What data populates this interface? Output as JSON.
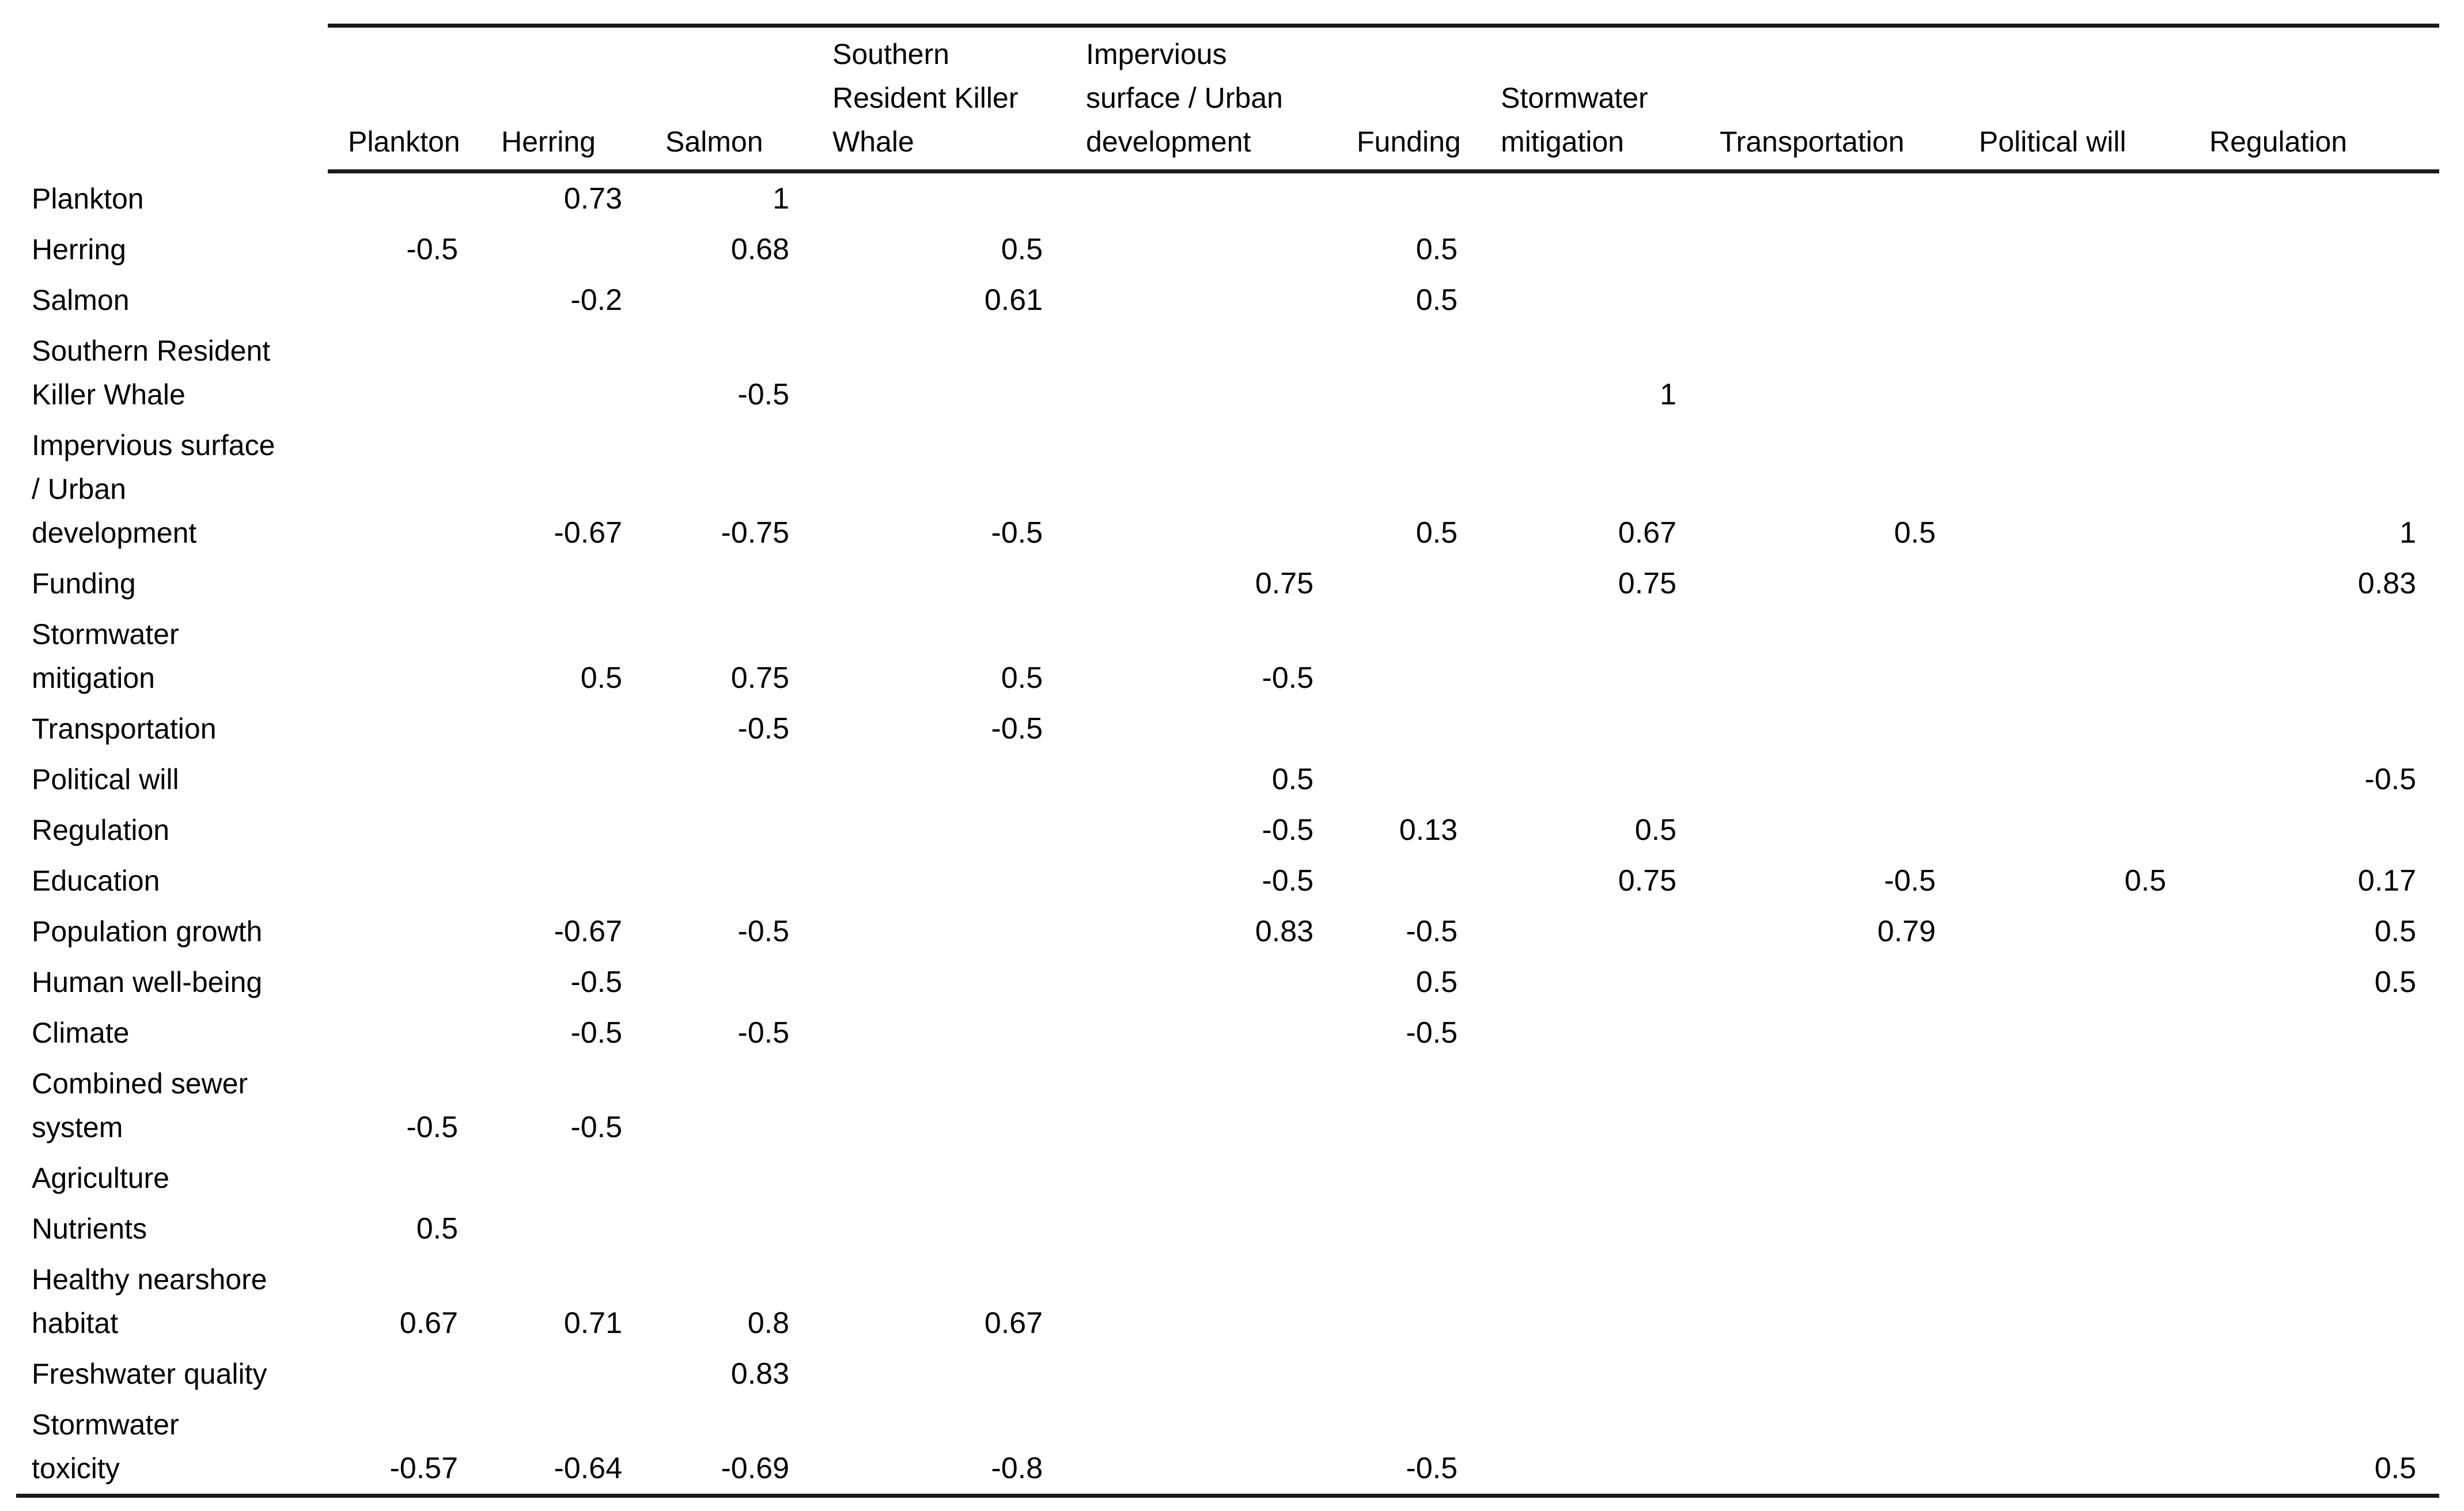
{
  "document": {
    "background_color": "#ffffff",
    "text_color": "#000000",
    "rule_color": "#1a1a1a"
  },
  "table": {
    "corner_label": "",
    "columns": [
      "Plankton",
      "Herring",
      "Salmon",
      "Southern\nResident Killer\nWhale",
      "Impervious\nsurface / Urban\ndevelopment",
      "Funding",
      "Stormwater\nmitigation",
      "Transportation",
      "Political will",
      "Regulation"
    ],
    "rows": [
      {
        "label": "Plankton",
        "values": [
          "",
          "0.73",
          "1",
          "",
          "",
          "",
          "",
          "",
          "",
          ""
        ]
      },
      {
        "label": "Herring",
        "values": [
          "-0.5",
          "",
          "0.68",
          "0.5",
          "",
          "0.5",
          "",
          "",
          "",
          ""
        ]
      },
      {
        "label": "Salmon",
        "values": [
          "",
          "-0.2",
          "",
          "0.61",
          "",
          "0.5",
          "",
          "",
          "",
          ""
        ]
      },
      {
        "label": "Southern Resident\nKiller Whale",
        "values": [
          "",
          "",
          "-0.5",
          "",
          "",
          "",
          "1",
          "",
          "",
          ""
        ]
      },
      {
        "label": "Impervious surface\n/ Urban\ndevelopment",
        "values": [
          "",
          "-0.67",
          "-0.75",
          "-0.5",
          "",
          "0.5",
          "0.67",
          "0.5",
          "",
          "1"
        ]
      },
      {
        "label": "Funding",
        "values": [
          "",
          "",
          "",
          "",
          "0.75",
          "",
          "0.75",
          "",
          "",
          "0.83"
        ]
      },
      {
        "label": "Stormwater\nmitigation",
        "values": [
          "",
          "0.5",
          "0.75",
          "0.5",
          "-0.5",
          "",
          "",
          "",
          "",
          ""
        ]
      },
      {
        "label": "Transportation",
        "values": [
          "",
          "",
          "-0.5",
          "-0.5",
          "",
          "",
          "",
          "",
          "",
          ""
        ]
      },
      {
        "label": "Political will",
        "values": [
          "",
          "",
          "",
          "",
          "0.5",
          "",
          "",
          "",
          "",
          "-0.5"
        ]
      },
      {
        "label": "Regulation",
        "values": [
          "",
          "",
          "",
          "",
          "-0.5",
          "0.13",
          "0.5",
          "",
          "",
          ""
        ]
      },
      {
        "label": "Education",
        "values": [
          "",
          "",
          "",
          "",
          "-0.5",
          "",
          "0.75",
          "-0.5",
          "0.5",
          "0.17"
        ]
      },
      {
        "label": "Population growth",
        "values": [
          "",
          "-0.67",
          "-0.5",
          "",
          "0.83",
          "-0.5",
          "",
          "0.79",
          "",
          "0.5"
        ]
      },
      {
        "label": "Human well-being",
        "values": [
          "",
          "-0.5",
          "",
          "",
          "",
          "0.5",
          "",
          "",
          "",
          "0.5"
        ]
      },
      {
        "label": "Climate",
        "values": [
          "",
          "-0.5",
          "-0.5",
          "",
          "",
          "-0.5",
          "",
          "",
          "",
          ""
        ]
      },
      {
        "label": "Combined sewer\nsystem",
        "values": [
          "-0.5",
          "-0.5",
          "",
          "",
          "",
          "",
          "",
          "",
          "",
          ""
        ]
      },
      {
        "label": "Agriculture",
        "values": [
          "",
          "",
          "",
          "",
          "",
          "",
          "",
          "",
          "",
          ""
        ]
      },
      {
        "label": "Nutrients",
        "values": [
          "0.5",
          "",
          "",
          "",
          "",
          "",
          "",
          "",
          "",
          ""
        ]
      },
      {
        "label": "Healthy nearshore\nhabitat",
        "values": [
          "0.67",
          "0.71",
          "0.8",
          "0.67",
          "",
          "",
          "",
          "",
          "",
          ""
        ]
      },
      {
        "label": "Freshwater quality",
        "values": [
          "",
          "",
          "0.83",
          "",
          "",
          "",
          "",
          "",
          "",
          ""
        ]
      },
      {
        "label": "Stormwater\ntoxicity",
        "values": [
          "-0.57",
          "-0.64",
          "-0.69",
          "-0.8",
          "",
          "-0.5",
          "",
          "",
          "",
          "0.5"
        ]
      }
    ]
  }
}
